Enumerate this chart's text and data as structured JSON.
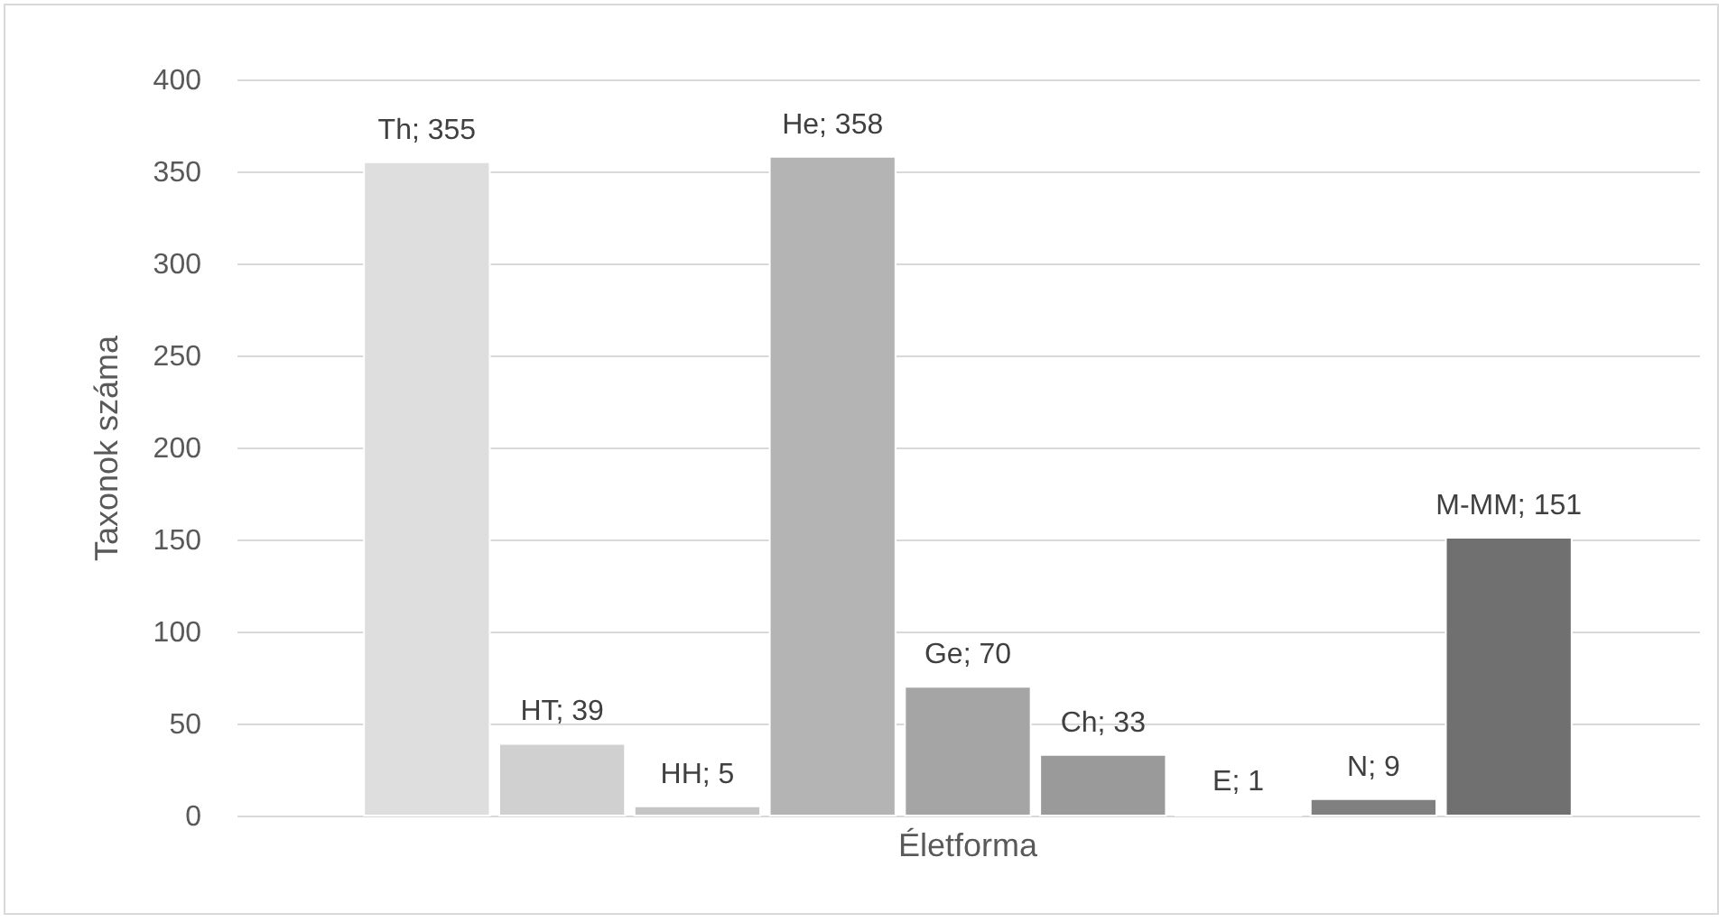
{
  "chart_data": {
    "type": "bar",
    "ylabel": "Taxonok száma",
    "categories": [
      "Életforma"
    ],
    "series": [
      {
        "color": "#dedede",
        "values": [
          355
        ],
        "value_labels": [
          "Th; 355"
        ]
      },
      {
        "color": "#d0d0d0",
        "values": [
          39
        ],
        "value_labels": [
          "HT; 39"
        ]
      },
      {
        "color": "#c4c4c4",
        "values": [
          5
        ],
        "value_labels": [
          "HH; 5"
        ]
      },
      {
        "color": "#b4b4b4",
        "values": [
          358
        ],
        "value_labels": [
          "He; 358"
        ]
      },
      {
        "color": "#a5a5a5",
        "values": [
          70
        ],
        "value_labels": [
          "Ge; 70"
        ]
      },
      {
        "color": "#9a9a9a",
        "values": [
          33
        ],
        "value_labels": [
          "Ch; 33"
        ]
      },
      {
        "color": "#8c8c8c",
        "values": [
          1
        ],
        "value_labels": [
          "E; 1"
        ]
      },
      {
        "color": "#808080",
        "values": [
          9
        ],
        "value_labels": [
          "N; 9"
        ]
      },
      {
        "color": "#707070",
        "values": [
          151
        ],
        "value_labels": [
          "M-MM; 151"
        ]
      }
    ],
    "ylim": [
      0,
      400
    ],
    "yticks": [
      0,
      50,
      100,
      150,
      200,
      250,
      300,
      350,
      400
    ],
    "grid": "y"
  }
}
